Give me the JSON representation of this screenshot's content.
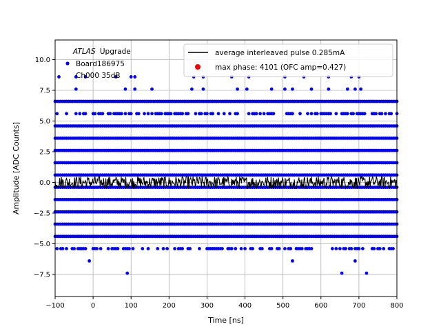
{
  "chart_data": {
    "type": "scatter",
    "title": "",
    "xlabel": "Time [ns]",
    "ylabel": "Amplitude [ADC Counts]",
    "xlim": [
      -100,
      800
    ],
    "ylim": [
      -9.3,
      11.6
    ],
    "xticks": [
      -100,
      0,
      100,
      200,
      300,
      400,
      500,
      600,
      700,
      800
    ],
    "yticks": [
      -7.5,
      -5.0,
      -2.5,
      0.0,
      2.5,
      5.0,
      7.5,
      10.0
    ],
    "xtick_labels": [
      "−100",
      "0",
      "100",
      "200",
      "300",
      "400",
      "500",
      "600",
      "700",
      "800"
    ],
    "ytick_labels": [
      "−7.5",
      "−5.0",
      "−2.5",
      "0.0",
      "2.5",
      "5.0",
      "7.5",
      "10.0"
    ],
    "grid": true,
    "colors": {
      "samples": "#0000ff",
      "pulse": "#000000",
      "max_phase": "#ff0000",
      "grid": "#b0b0b0"
    },
    "annotation": {
      "experiment": "ATLAS",
      "experiment_suffix": "Upgrade",
      "board": "Board186975",
      "channel": "Ch000 35dB"
    },
    "legend": {
      "position": "top-right",
      "entries": [
        {
          "label": "average interleaved pulse 0.285mA",
          "marker": "line",
          "color": "#000000"
        },
        {
          "label": "max phase: 4101 (OFC amp=0.427)",
          "marker": "dot",
          "color": "#ff0000"
        }
      ]
    },
    "series": [
      {
        "name": "samples",
        "kind": "quantized-noise-bands",
        "color": "#0000ff",
        "levels": [
          {
            "y": 8.6,
            "points": [
              -90,
              -45,
              -20,
              60,
              100,
              110,
              265,
              290,
              365,
              410,
              505,
              555,
              620,
              680,
              700
            ]
          },
          {
            "y": 7.6,
            "points": [
              -45,
              85,
              110,
              155,
              260,
              290,
              380,
              405,
              470,
              505,
              525,
              575,
              620,
              670,
              690,
              705
            ]
          },
          {
            "y": 6.6,
            "dense": true
          },
          {
            "y": 5.6,
            "sparse": true
          },
          {
            "y": 4.6,
            "dense": true
          },
          {
            "y": 3.6,
            "dense": true
          },
          {
            "y": 2.6,
            "dense": true
          },
          {
            "y": 1.6,
            "dense": true
          },
          {
            "y": 0.6,
            "dense": true
          },
          {
            "y": -0.4,
            "dense": true
          },
          {
            "y": -1.4,
            "dense": true
          },
          {
            "y": -2.4,
            "dense": true
          },
          {
            "y": -3.4,
            "dense": true
          },
          {
            "y": -4.4,
            "dense": true
          },
          {
            "y": -5.4,
            "sparse": true
          },
          {
            "y": -6.4,
            "points": [
              -10,
              525,
              690
            ]
          },
          {
            "y": -7.4,
            "points": [
              90,
              655,
              720
            ]
          }
        ]
      },
      {
        "name": "average interleaved pulse 0.285mA",
        "kind": "noise-line",
        "color": "#000000",
        "amplitude": 0.5
      }
    ]
  }
}
